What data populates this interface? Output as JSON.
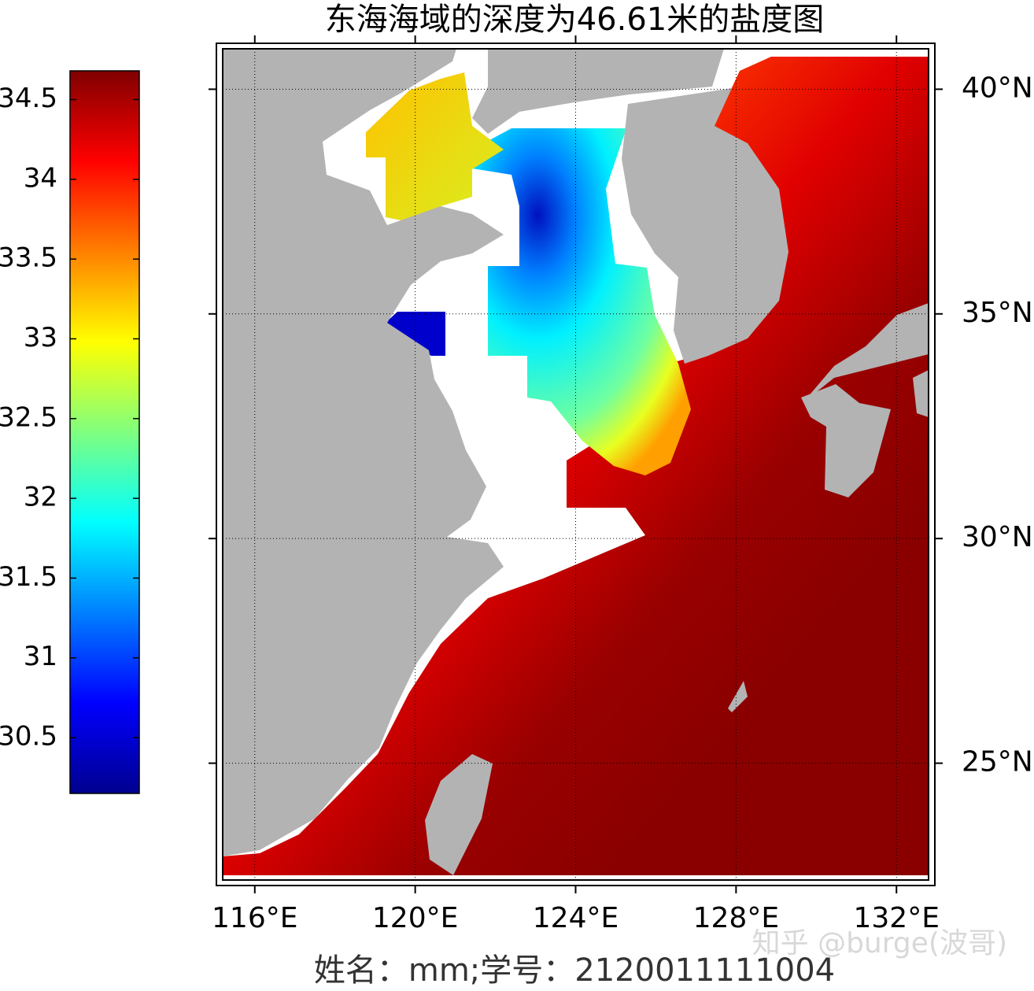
{
  "chart_data": {
    "type": "map",
    "title": "东海海域的深度为46.61米的盐度图",
    "xlabel": "姓名：mm;学号：2120011111004",
    "watermark": "知乎 @burge(波哥)",
    "xlim": [
      115.2,
      132.8
    ],
    "ylim": [
      22.4,
      40.9
    ],
    "xticks": [
      {
        "value": 116,
        "label": "116°E"
      },
      {
        "value": 120,
        "label": "120°E"
      },
      {
        "value": 124,
        "label": "124°E"
      },
      {
        "value": 128,
        "label": "128°E"
      },
      {
        "value": 132,
        "label": "132°E"
      }
    ],
    "yticks": [
      {
        "value": 25,
        "label": "25°N"
      },
      {
        "value": 30,
        "label": "30°N"
      },
      {
        "value": 35,
        "label": "35°N"
      },
      {
        "value": 40,
        "label": "40°N"
      }
    ],
    "grid": true,
    "colorbar": {
      "clim": [
        30.15,
        34.68
      ],
      "ticks": [
        30.5,
        31,
        31.5,
        32,
        32.5,
        33,
        33.5,
        34,
        34.5
      ]
    }
  }
}
